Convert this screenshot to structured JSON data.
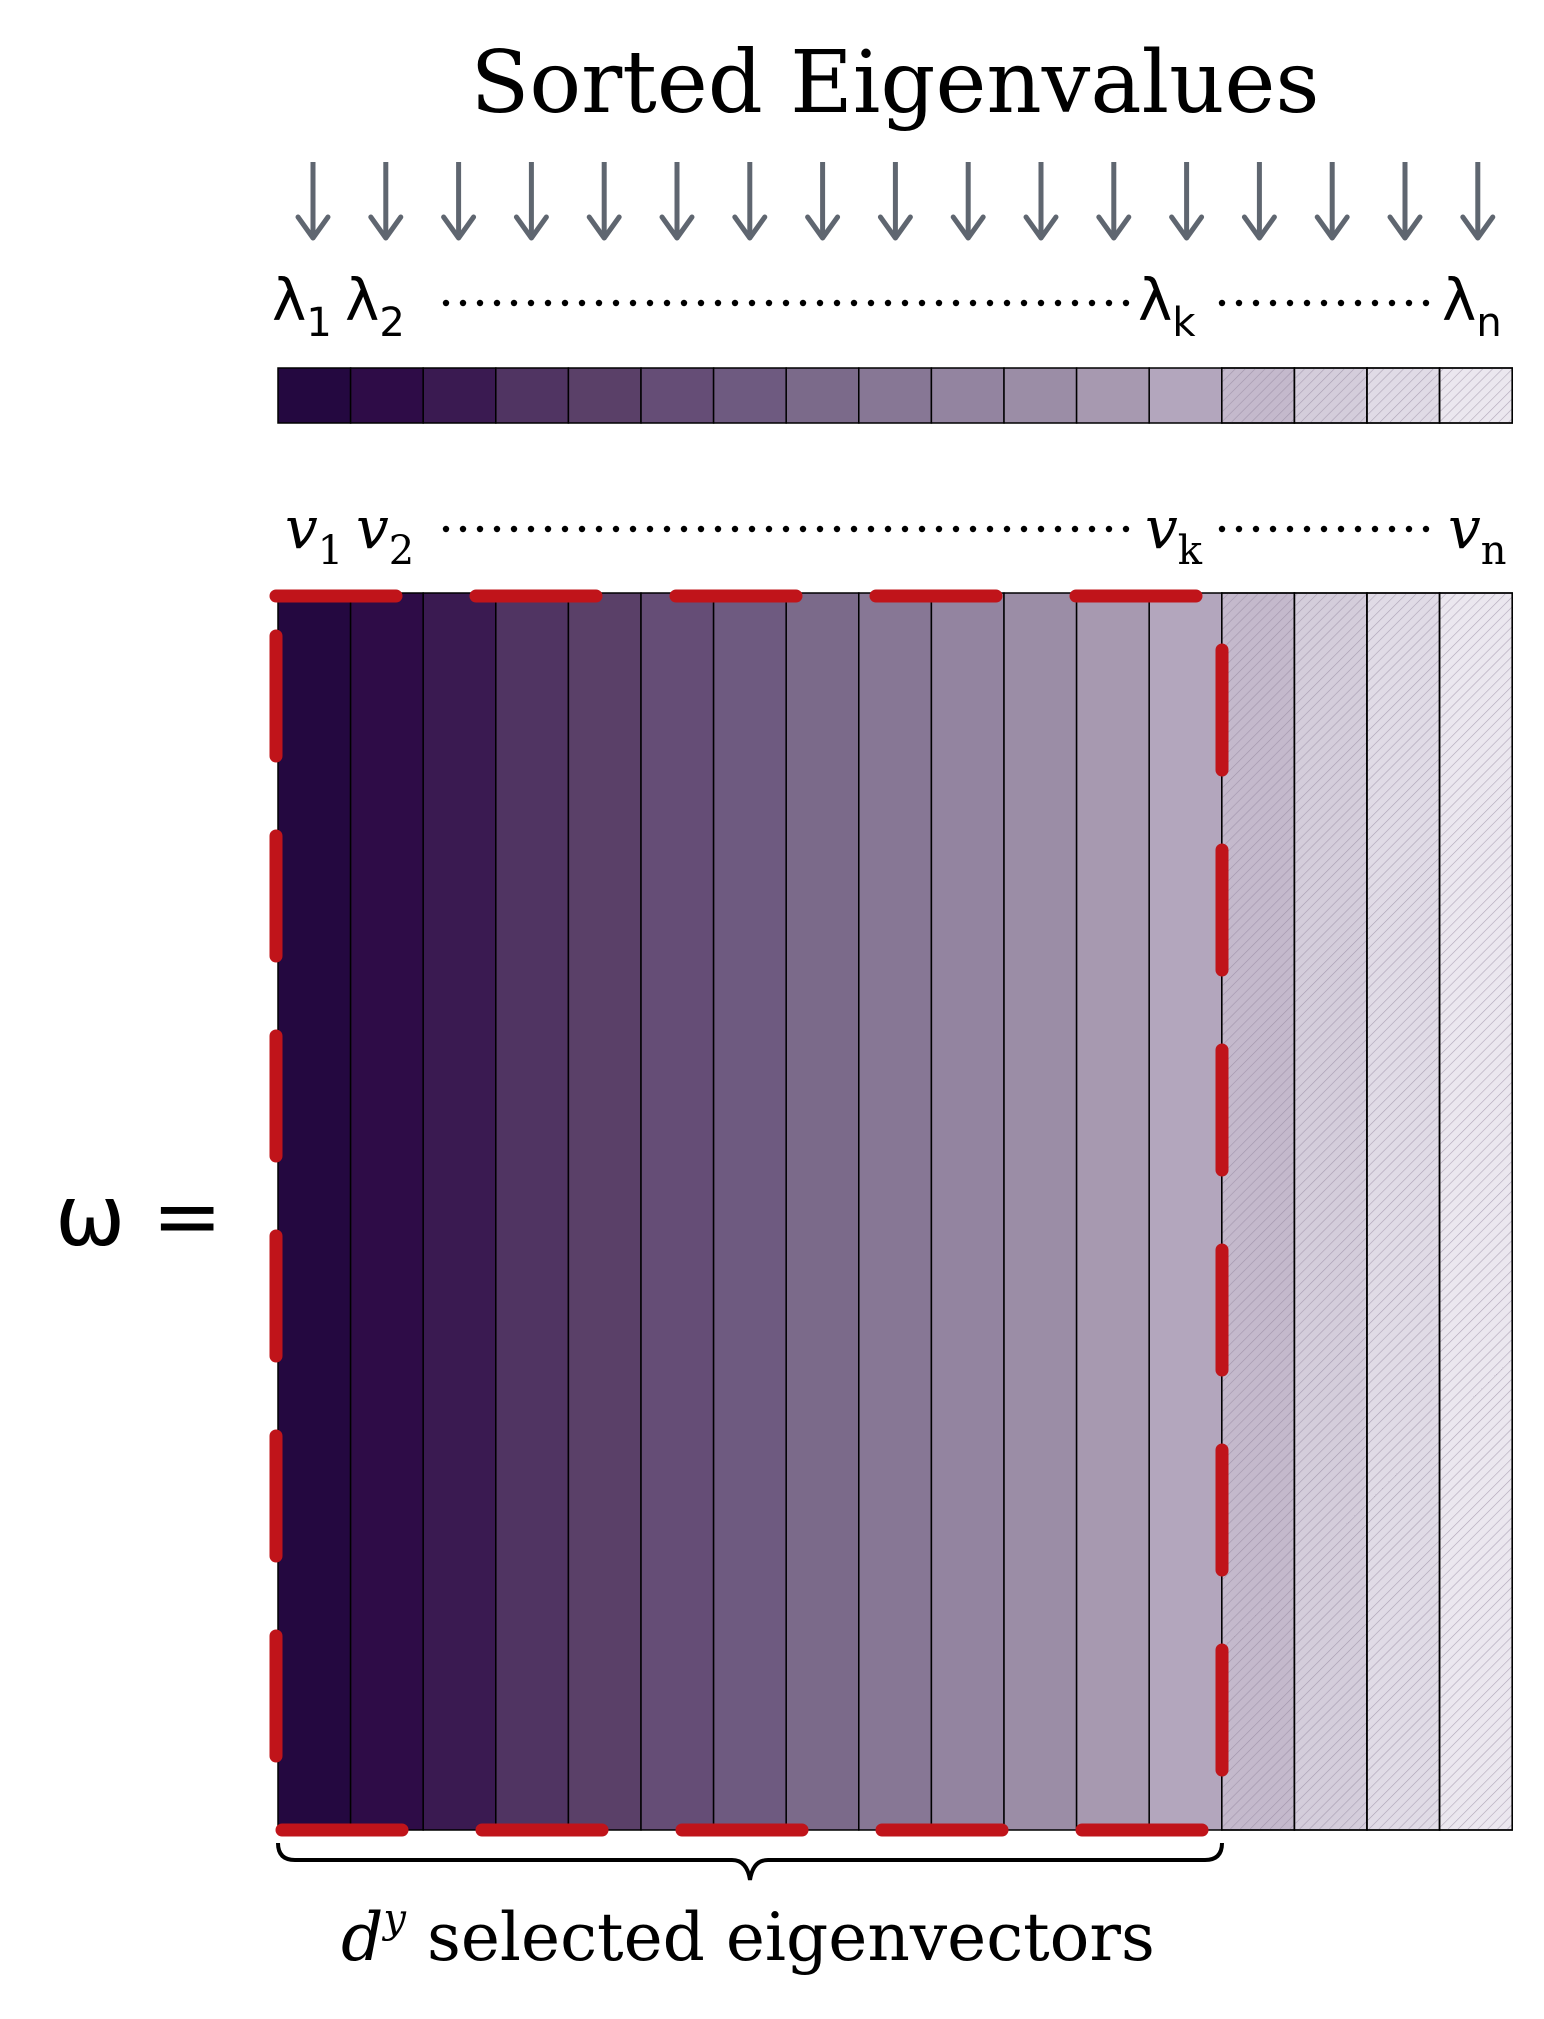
{
  "title": "Sorted Eigenvalues",
  "eigenvalue_labels": [
    {
      "base": "λ",
      "sub": "1"
    },
    {
      "base": "λ",
      "sub": "2"
    },
    {
      "base": "λ",
      "sub": "k"
    },
    {
      "base": "λ",
      "sub": "n"
    }
  ],
  "eigenvector_labels": [
    {
      "base": "v",
      "sub": "1"
    },
    {
      "base": "v",
      "sub": "2"
    },
    {
      "base": "v",
      "sub": "k"
    },
    {
      "base": "v",
      "sub": "n"
    }
  ],
  "matrix_label": "ω =",
  "selection_caption": {
    "base": "d",
    "sup": "y",
    "text": " selected eigenvectors"
  },
  "column_count": 17,
  "selected_count": 13,
  "column_colors": [
    "#240840",
    "#2e0c47",
    "#3a1a51",
    "#503462",
    "#5a4068",
    "#654d76",
    "#6e5a80",
    "#7b6a8a",
    "#877795",
    "#9384a0",
    "#9b8da6",
    "#a799b0",
    "#b3a6bd",
    "#c4b9cc",
    "#d4cddb",
    "#e0dbe6",
    "#ebe7ef"
  ],
  "colors": {
    "arrow": "#5f6670",
    "selection": "#c0141a",
    "text": "#000000"
  }
}
